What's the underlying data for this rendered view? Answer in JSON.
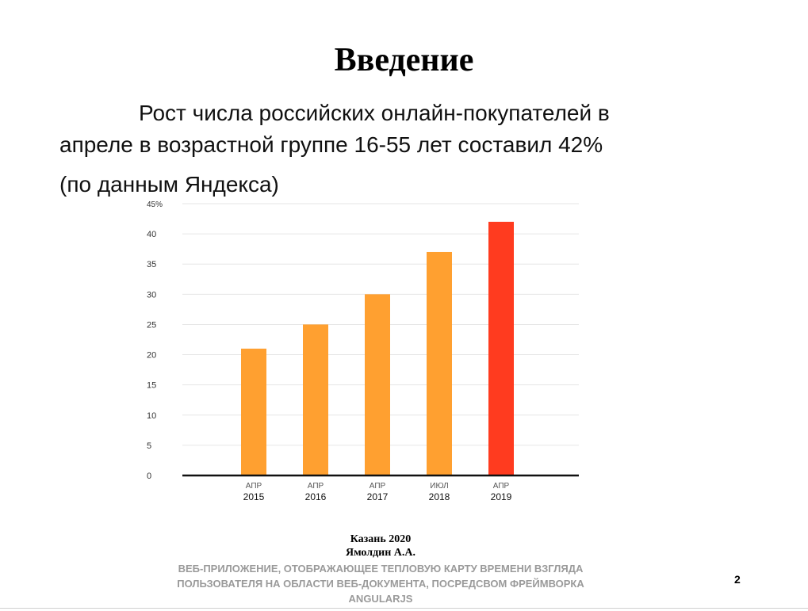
{
  "slide": {
    "title": "Введение",
    "intro_line1": "Рост числа российских онлайн-покупателей в",
    "intro_line2": "апреле в возрастной группе 16-55 лет составил 42%",
    "intro_source": "(по данным Яндекса)",
    "page_number": "2"
  },
  "footer": {
    "city_year": "Казань 2020",
    "author": "Ямолдин А.А.",
    "topic_line1": "ВЕБ-ПРИЛОЖЕНИЕ, ОТОБРАЖАЮЩЕЕ ТЕПЛОВУЮ КАРТУ ВРЕМЕНИ ВЗГЛЯДА",
    "topic_line2": "ПОЛЬЗОВАТЕЛЯ НА ОБЛАСТИ ВЕБ-ДОКУМЕНТА, ПОСРЕДСВОМ ФРЕЙМВОРКА",
    "topic_line3": "ANGULARJS"
  },
  "chart_data": {
    "type": "bar",
    "categories": [
      {
        "month": "АПР",
        "year": "2015"
      },
      {
        "month": "АПР",
        "year": "2016"
      },
      {
        "month": "АПР",
        "year": "2017"
      },
      {
        "month": "ИЮЛ",
        "year": "2018"
      },
      {
        "month": "АПР",
        "year": "2019"
      }
    ],
    "values": [
      21,
      25,
      30,
      37,
      42
    ],
    "bar_colors": [
      "#ffa030",
      "#ffa030",
      "#ffa030",
      "#ffa030",
      "#ff3b1f"
    ],
    "ylim": [
      0,
      45
    ],
    "yticks": [
      0,
      5,
      10,
      15,
      20,
      25,
      30,
      35,
      40,
      45
    ],
    "ytick_labels": [
      "0",
      "5",
      "10",
      "15",
      "20",
      "25",
      "30",
      "35",
      "40",
      "45%"
    ],
    "grid": true,
    "colors": {
      "bar": "#ffa030",
      "highlight": "#ff3b1f",
      "grid": "#e6e6e6",
      "axis": "#111111"
    }
  }
}
